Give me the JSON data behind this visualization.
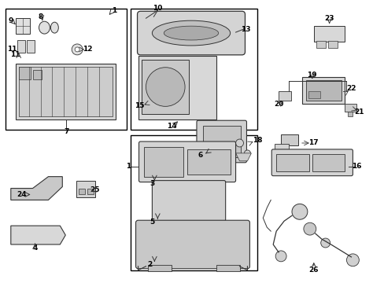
{
  "bg_color": "#ffffff",
  "line_color": "#333333",
  "text_color": "#000000",
  "fig_width": 4.89,
  "fig_height": 3.6,
  "dpi": 100
}
